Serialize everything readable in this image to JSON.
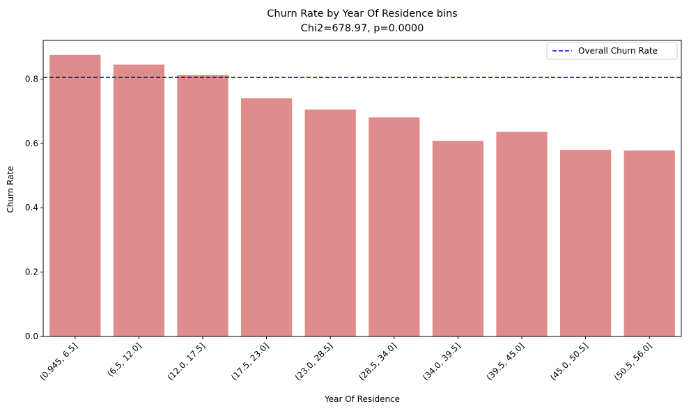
{
  "chart_data": {
    "type": "bar",
    "title": "Churn Rate by Year Of Residence bins",
    "subtitle": "Chi2=678.97, p=0.0000",
    "xlabel": "Year Of Residence",
    "ylabel": "Churn Rate",
    "categories": [
      "(0.945, 6.5]",
      "(6.5, 12.0]",
      "(12.0, 17.5]",
      "(17.5, 23.0]",
      "(23.0, 28.5]",
      "(28.5, 34.0]",
      "(34.0, 39.5]",
      "(39.5, 45.0]",
      "(45.0, 50.5]",
      "(50.5, 56.0]"
    ],
    "values": [
      0.875,
      0.845,
      0.812,
      0.74,
      0.705,
      0.681,
      0.608,
      0.636,
      0.58,
      0.578
    ],
    "ylim": [
      0,
      0.92
    ],
    "yticks": [
      "0.0",
      "0.2",
      "0.4",
      "0.6",
      "0.8"
    ],
    "yticks_values": [
      0.0,
      0.2,
      0.4,
      0.6,
      0.8
    ],
    "reference_line": {
      "label": "Overall Churn Rate",
      "value": 0.805,
      "style": "dashed",
      "color": "#0000ff"
    },
    "bar_color": "#e08c8c",
    "legend_position": "top-right",
    "grid": false
  }
}
